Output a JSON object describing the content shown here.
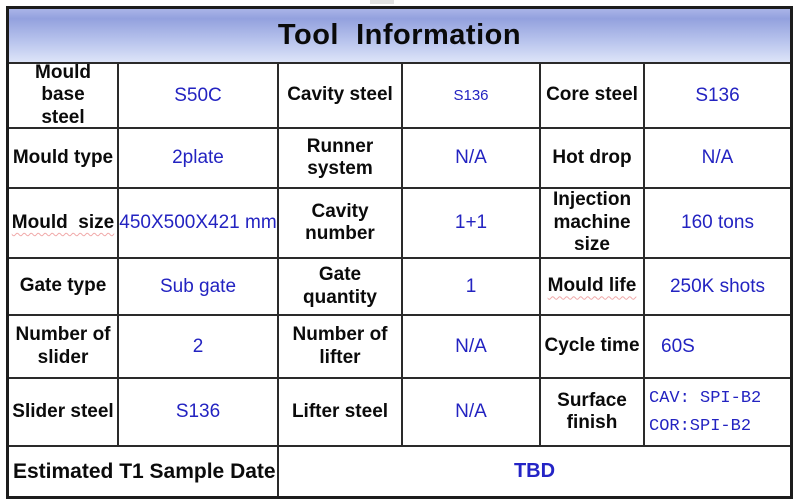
{
  "title": "Tool  Information",
  "colors": {
    "value_blue": "#2323c1",
    "header_gradient_top": "#93a1de",
    "header_gradient_bottom": "#dde4f8",
    "border": "#2a2a2a"
  },
  "table": {
    "rows": [
      {
        "cells": [
          "Mould base\nsteel",
          "S50C",
          "Cavity steel",
          "S136",
          "Core steel",
          "S136"
        ]
      },
      {
        "cells": [
          "Mould type",
          "2plate",
          "Runner\nsystem",
          "N/A",
          "Hot drop",
          "N/A"
        ]
      },
      {
        "cells": [
          "Mould  size",
          "450X500X421 mm",
          "Cavity\nnumber",
          "1+1",
          "Injection\nmachine\nsize",
          "160 tons"
        ]
      },
      {
        "cells": [
          "Gate type",
          "Sub gate",
          "Gate quantity",
          "1",
          "Mould life",
          "250K shots"
        ]
      },
      {
        "cells": [
          "Number of\nslider",
          "2",
          "Number of\nlifter",
          "N/A",
          "Cycle time",
          "60S"
        ]
      },
      {
        "cells": [
          "Slider steel",
          "S136",
          "Lifter steel",
          "N/A",
          "Surface\nfinish"
        ]
      }
    ],
    "surface_finish_lines": [
      "CAV: SPI-B2",
      "COR:SPI-B2"
    ],
    "footer_label": "Estimated T1 Sample Date",
    "footer_value": "TBD"
  }
}
